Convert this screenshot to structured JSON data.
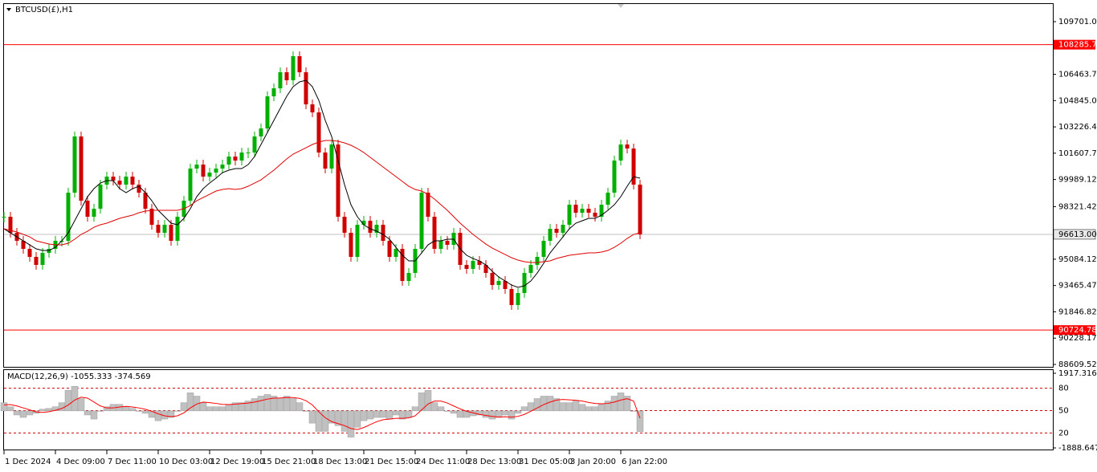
{
  "chart_data": [
    {
      "type": "candlestick",
      "title": "BTCUSD(£),H1",
      "categories": [
        "1 Dec 2024",
        null,
        null,
        null,
        null,
        null,
        null,
        null,
        "4 Dec 09:00",
        null,
        null,
        null,
        null,
        null,
        null,
        null,
        "7 Dec 11:00",
        null,
        null,
        null,
        null,
        null,
        null,
        null,
        "10 Dec 03:00",
        null,
        null,
        null,
        null,
        null,
        null,
        null,
        "12 Dec 19:00",
        null,
        null,
        null,
        null,
        null,
        null,
        null,
        "15 Dec 21:00",
        null,
        null,
        null,
        null,
        null,
        null,
        null,
        "18 Dec 13:00",
        null,
        null,
        null,
        null,
        null,
        null,
        null,
        "21 Dec 15:00",
        null,
        null,
        null,
        null,
        null,
        null,
        null,
        "24 Dec 11:00",
        null,
        null,
        null,
        null,
        null,
        null,
        null,
        "28 Dec 13:00",
        null,
        null,
        null,
        null,
        null,
        null,
        null,
        "31 Dec 05:00",
        null,
        null,
        null,
        null,
        null,
        null,
        null,
        "3 Jan 20:00",
        null,
        null,
        null,
        null,
        null,
        null,
        null,
        "6 Jan 22:00",
        null,
        null,
        null
      ],
      "values": [
        97697,
        96709,
        96215,
        95721,
        95227,
        94733,
        95474,
        95721,
        96215,
        96215,
        99179,
        102637,
        98685,
        97697,
        98191,
        99673,
        100167,
        99920,
        99673,
        100167,
        99673,
        99179,
        98191,
        97203,
        96709,
        97203,
        96215,
        97697,
        98685,
        100661,
        100908,
        100167,
        100414,
        100661,
        100908,
        101402,
        101155,
        101649,
        101649,
        102637,
        103131,
        105107,
        105601,
        106589,
        106095,
        107577,
        106589,
        104613,
        104119,
        101649,
        100661,
        102143,
        97697,
        96709,
        95227,
        97203,
        97450,
        96709,
        97203,
        96215,
        95227,
        95721,
        93745,
        94239,
        95721,
        99179,
        97697,
        95721,
        96215,
        95968,
        96709,
        94733,
        94486,
        94980,
        94733,
        94239,
        93498,
        93745,
        93251,
        92263,
        93004,
        94239,
        94733,
        95227,
        96215,
        96956,
        96709,
        97203,
        98438,
        97944,
        98191,
        97944,
        97697,
        98438,
        99179,
        101155,
        102143,
        101896,
        99673,
        96613
      ],
      "up_color": "#00b000",
      "down_color": "#d00000",
      "series": [
        {
          "color": "#000000",
          "values": [
            96956,
            96709,
            96462,
            96215,
            95968,
            95721,
            95622,
            95622,
            95820,
            96215,
            96709,
            97450,
            98191,
            98932,
            99426,
            99772,
            99920,
            99920,
            99426,
            99179,
            99426,
            99574,
            99179,
            98685,
            98092,
            97697,
            97302,
            97203,
            97598,
            98191,
            98932,
            99426,
            99772,
            100068,
            100414,
            100562,
            100661,
            100661,
            100908,
            101402,
            102143,
            102884,
            103625,
            104366,
            105107,
            105700,
            105996,
            106095,
            105700,
            104860,
            103625,
            102637,
            101155,
            99673,
            98438,
            97697,
            97203,
            96956,
            96808,
            96610,
            96314,
            95820,
            95326,
            94980,
            94980,
            95474,
            95968,
            96215,
            96215,
            96314,
            96314,
            95721,
            95326,
            95128,
            94980,
            94733,
            94338,
            93992,
            93745,
            93498,
            93350,
            93449,
            93745,
            94239,
            94832,
            95474,
            95968,
            96462,
            96956,
            97302,
            97450,
            97598,
            97598,
            97795,
            98092,
            98438,
            98932,
            99574,
            100167,
            100068
          ]
        },
        {
          "color": "#e00000",
          "values": [
            96956,
            96857,
            96758,
            96610,
            96462,
            96215,
            96116,
            96017,
            95968,
            95968,
            96067,
            96314,
            96610,
            96808,
            97055,
            97203,
            97302,
            97450,
            97598,
            97697,
            97795,
            97944,
            98043,
            98092,
            98092,
            98092,
            98092,
            98092,
            98191,
            98389,
            98685,
            98883,
            99080,
            99278,
            99377,
            99426,
            99377,
            99426,
            99574,
            99772,
            99969,
            100266,
            100562,
            100908,
            101254,
            101550,
            101748,
            101945,
            102143,
            102291,
            102390,
            102390,
            102341,
            102242,
            102094,
            101896,
            101649,
            101353,
            101056,
            100760,
            100463,
            100167,
            99871,
            99574,
            99377,
            99278,
            99080,
            98784,
            98438,
            98092,
            97697,
            97302,
            96956,
            96610,
            96314,
            96017,
            95770,
            95573,
            95375,
            95178,
            95029,
            94931,
            94881,
            94881,
            94931,
            94980,
            95128,
            95227,
            95326,
            95375,
            95425,
            95474,
            95474,
            95523,
            95622,
            95820,
            96067,
            96363,
            96610,
            96709
          ]
        }
      ],
      "ylim": [
        88461.3,
        110787.7
      ],
      "yticks": [
        109701.02,
        106463.72,
        104845.07,
        103226.42,
        101607.77,
        99989.12,
        98321.42,
        95084.12,
        93465.47,
        91846.82,
        90228.17,
        88609.52
      ],
      "levels": [
        {
          "value": 108285.79,
          "color": "#ff0000"
        },
        {
          "value": 90724.78,
          "color": "#ff0000"
        }
      ],
      "current": {
        "value": 96613,
        "label": "96613.00"
      }
    },
    {
      "type": "macd",
      "title": "MACD(12,26,9) -1055.333 -374.569",
      "values": [
        418,
        209,
        -209,
        -334,
        -209,
        -125,
        84,
        125,
        209,
        418,
        1045,
        1254,
        627,
        -209,
        -418,
        0,
        209,
        334,
        334,
        209,
        125,
        0,
        -125,
        -334,
        -502,
        -418,
        -334,
        0,
        418,
        920,
        752,
        418,
        209,
        209,
        209,
        334,
        418,
        418,
        502,
        627,
        752,
        836,
        752,
        627,
        752,
        627,
        418,
        0,
        -627,
        -1045,
        -1045,
        -627,
        -752,
        -1045,
        -1338,
        -836,
        -502,
        -418,
        -334,
        -334,
        -418,
        -209,
        -418,
        -334,
        209,
        920,
        1045,
        418,
        209,
        0,
        -125,
        -334,
        -334,
        -251,
        -209,
        -334,
        -418,
        -334,
        -209,
        -418,
        -125,
        209,
        418,
        627,
        752,
        752,
        627,
        418,
        418,
        502,
        334,
        209,
        209,
        334,
        502,
        752,
        920,
        752,
        0,
        -1055.333
      ],
      "color": "#c0c0c0",
      "series": [
        {
          "color": "#ff0000",
          "values": [
            300,
            320,
            250,
            150,
            50,
            -50,
            -80,
            -40,
            30,
            120,
            300,
            550,
            700,
            650,
            450,
            250,
            150,
            150,
            200,
            230,
            200,
            150,
            80,
            -20,
            -150,
            -250,
            -300,
            -250,
            -100,
            150,
            350,
            450,
            420,
            380,
            330,
            320,
            340,
            370,
            400,
            450,
            520,
            600,
            650,
            660,
            680,
            680,
            640,
            520,
            300,
            -50,
            -350,
            -550,
            -650,
            -750,
            -900,
            -950,
            -850,
            -700,
            -550,
            -450,
            -420,
            -380,
            -380,
            -360,
            -250,
            50,
            350,
            500,
            500,
            400,
            250,
            100,
            -20,
            -100,
            -180,
            -230,
            -280,
            -320,
            -300,
            -320,
            -280,
            -180,
            -20,
            150,
            320,
            450,
            550,
            580,
            560,
            540,
            500,
            430,
            380,
            360,
            380,
            450,
            550,
            620,
            500,
            -374.569
          ]
        }
      ],
      "ylim": [
        -1888.647,
        1917.316
      ],
      "yticks": [
        1917.316,
        -1888.647
      ],
      "levels": [
        80,
        50,
        20
      ],
      "levels_lim": [
        0,
        100
      ]
    }
  ]
}
